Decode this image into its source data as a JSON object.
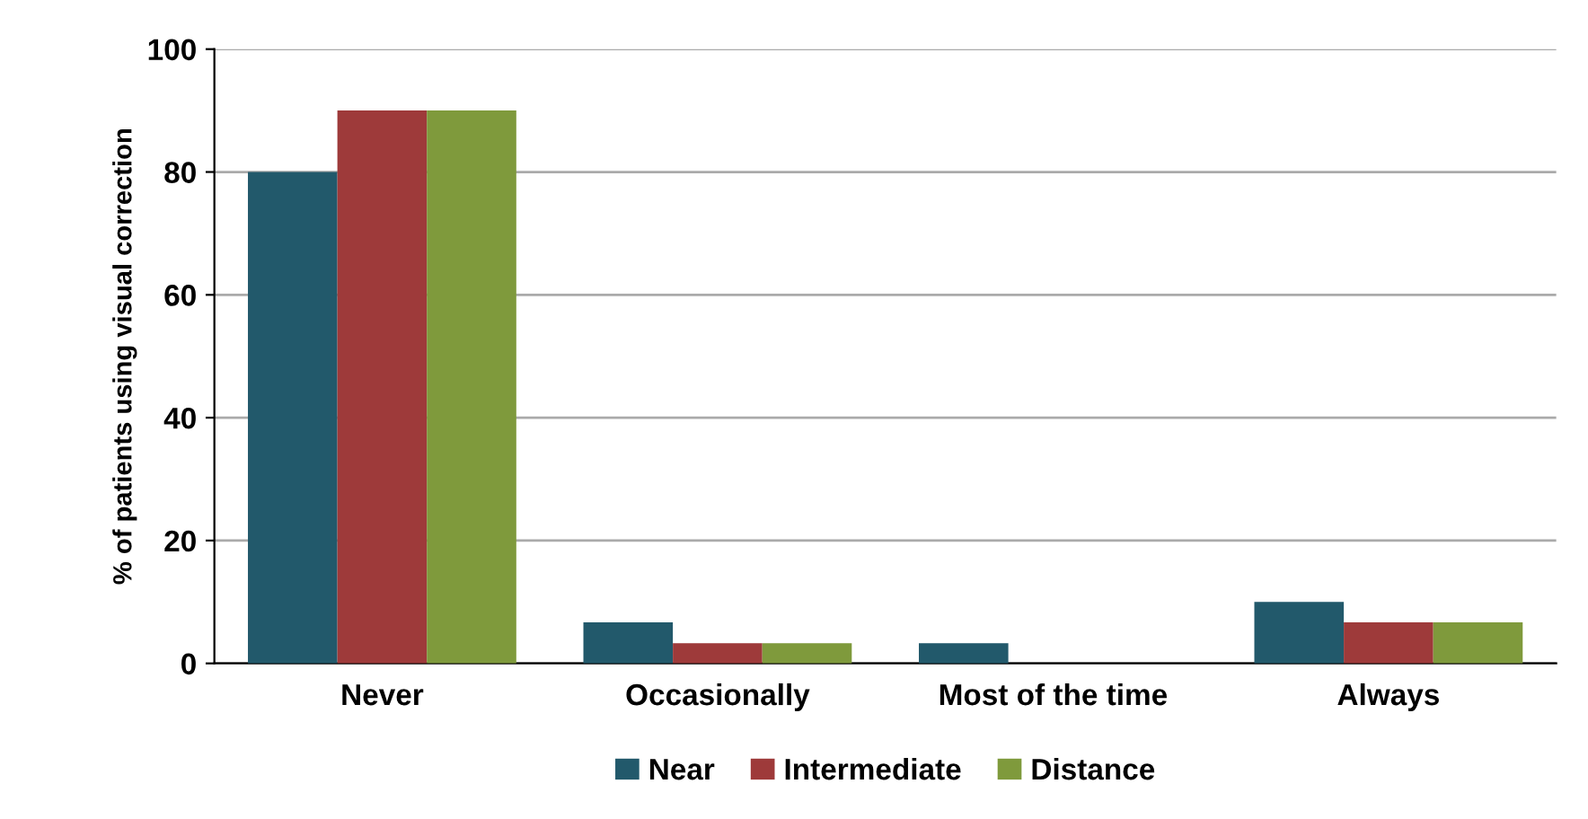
{
  "chart_data": {
    "type": "bar",
    "ylabel": "% of patients using visual correction",
    "categories": [
      "Never",
      "Occasionally",
      "Most of the time",
      "Always"
    ],
    "series": [
      {
        "name": "Near",
        "color": "#22596b",
        "values": [
          80,
          6.7,
          3.3,
          10
        ]
      },
      {
        "name": "Intermediate",
        "color": "#9e3a3a",
        "values": [
          90,
          3.3,
          0,
          6.7
        ]
      },
      {
        "name": "Distance",
        "color": "#7f9a3c",
        "values": [
          90,
          3.3,
          0,
          6.7
        ]
      }
    ],
    "ylim": [
      0,
      100
    ],
    "yticks": [
      0,
      20,
      40,
      60,
      80,
      100
    ],
    "grid": "y",
    "legend": "bottom"
  }
}
